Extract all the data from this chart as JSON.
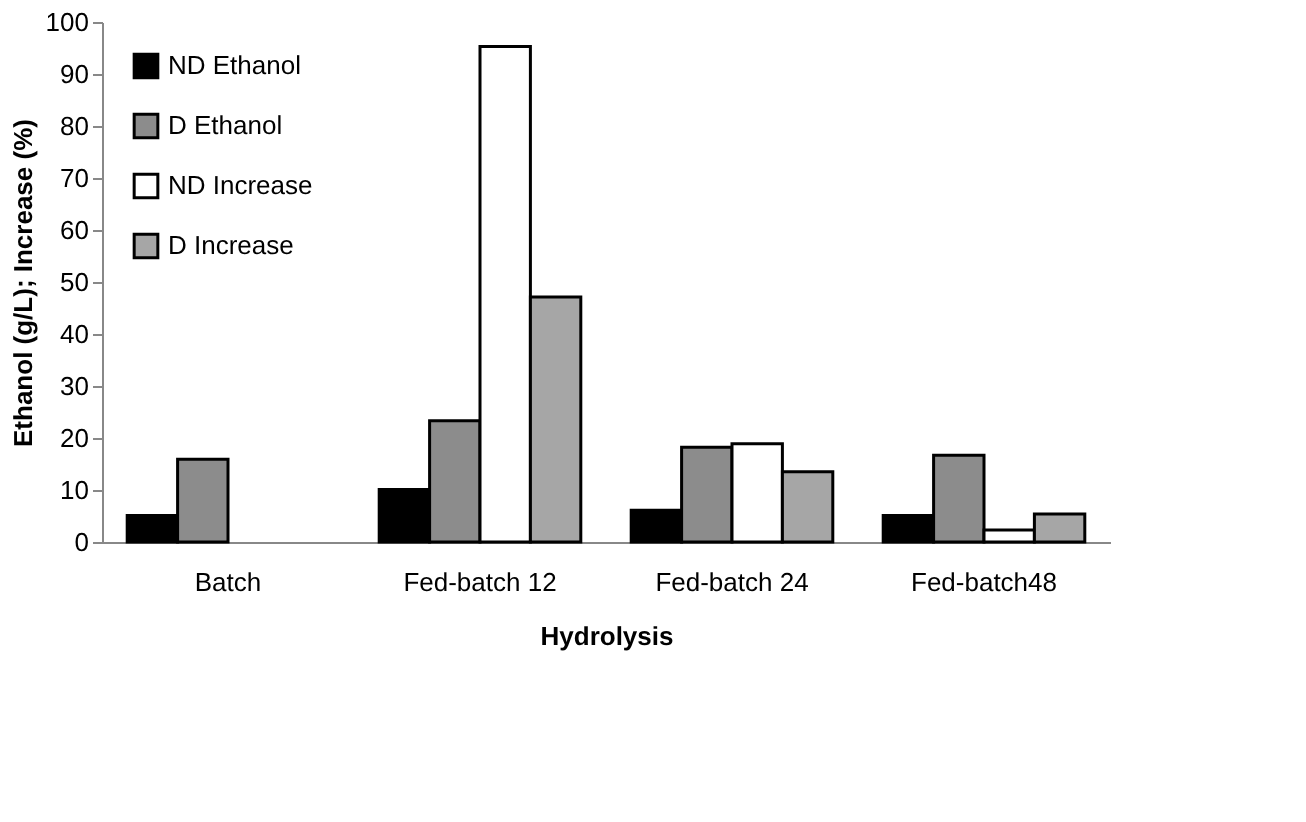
{
  "chart_data": {
    "type": "bar",
    "xlabel": "Hydrolysis",
    "ylabel": "Ethanol (g/L); Increase (%)",
    "categories": [
      "Batch",
      "Fed-batch 12",
      "Fed-batch 24",
      "Fed-batch48"
    ],
    "series": [
      {
        "name": "ND  Ethanol",
        "color": "#000000",
        "values": [
          5.1,
          10.1,
          6.1,
          5.1
        ]
      },
      {
        "name": "D Ethanol",
        "color": "#8c8c8c",
        "values": [
          15.9,
          23.3,
          18.2,
          16.7
        ]
      },
      {
        "name": "ND Increase",
        "color": "#ffffff",
        "values": [
          null,
          95.3,
          18.9,
          2.3
        ]
      },
      {
        "name": "D Increase",
        "color": "#a6a6a6",
        "values": [
          null,
          47.1,
          13.5,
          5.4
        ]
      }
    ],
    "ylim": [
      0,
      100
    ],
    "yticks": [
      0,
      10,
      20,
      30,
      40,
      50,
      60,
      70,
      80,
      90,
      100
    ],
    "grid": false,
    "legend": "top left"
  }
}
